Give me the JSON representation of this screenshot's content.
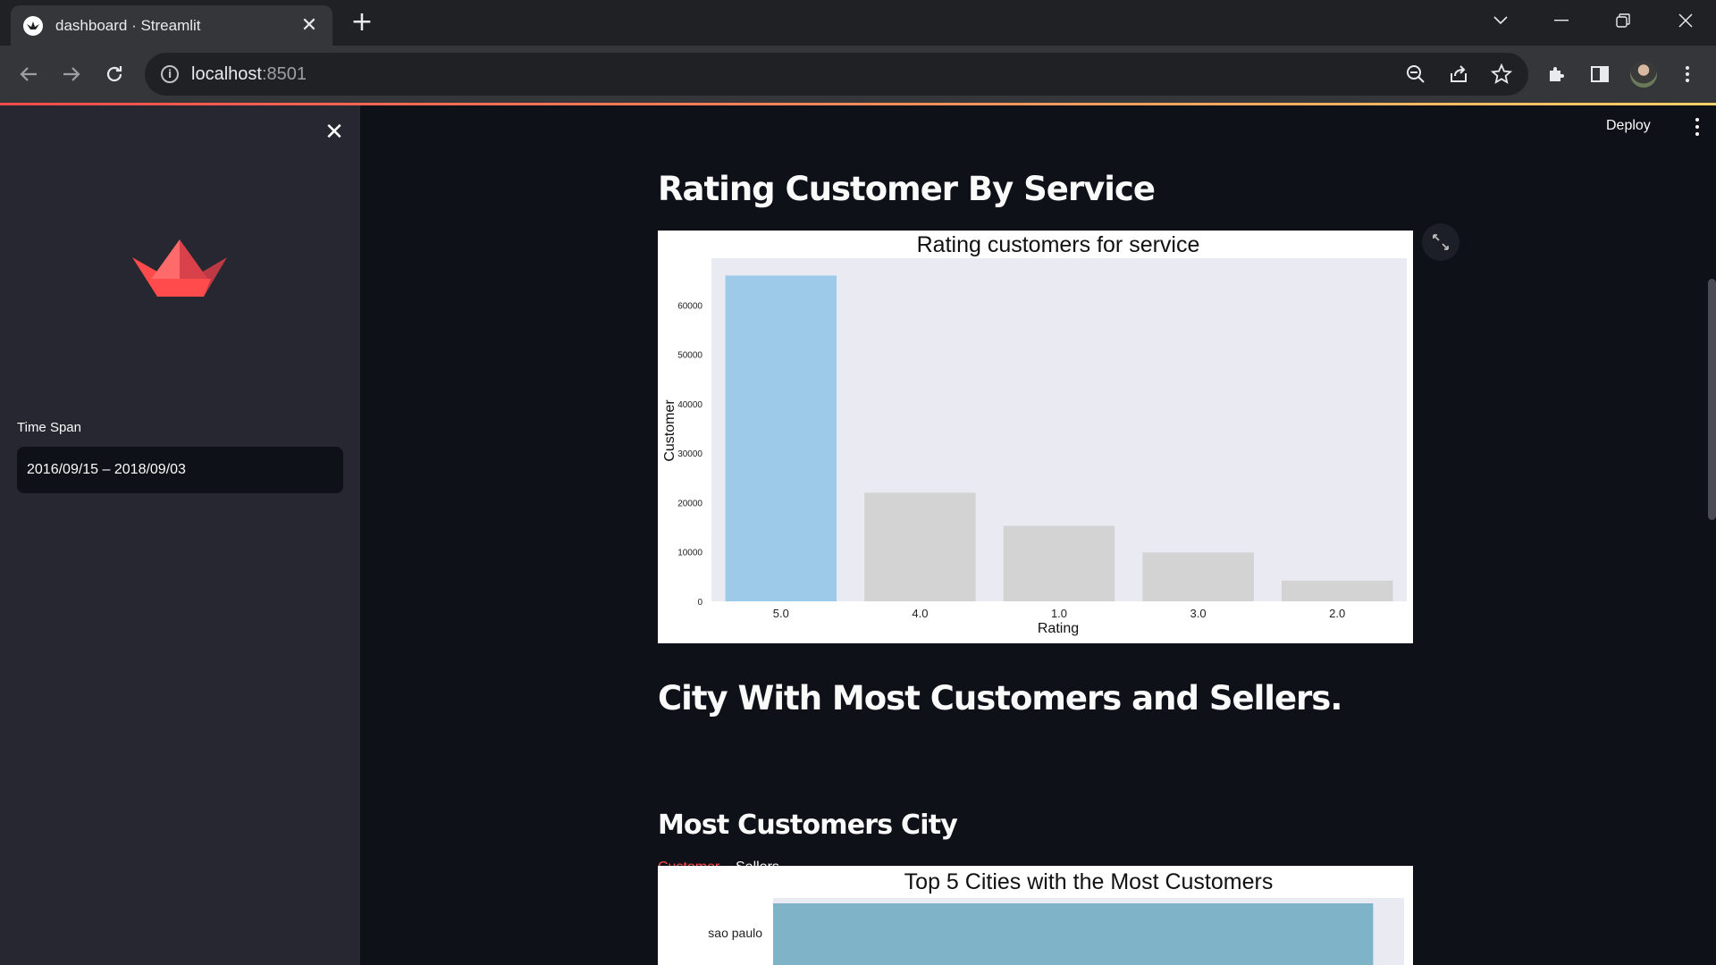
{
  "browser": {
    "tab_title": "dashboard · Streamlit",
    "url_host": "localhost",
    "url_port": ":8501"
  },
  "sidebar": {
    "time_span_label": "Time Span",
    "time_span_value": "2016/09/15 – 2018/09/03"
  },
  "header": {
    "deploy_label": "Deploy"
  },
  "main": {
    "rating_heading": "Rating Customer By Service",
    "city_heading": "City With Most Customers and Sellers.",
    "tabs": [
      {
        "label": "Customer",
        "active": true
      },
      {
        "label": "Sellers",
        "active": false
      }
    ],
    "most_customers_heading": "Most Customers City"
  },
  "colors": {
    "accent": "#ff4b4b",
    "highlight_bar": "#9ecae9",
    "muted_bar": "#d3d3d3",
    "city_bar": "#7fb3c8",
    "plot_bg": "#eaeaf2"
  },
  "chart_data": [
    {
      "type": "bar",
      "title": "Rating customers for service",
      "xlabel": "Rating",
      "ylabel": "Customer",
      "categories": [
        "5.0",
        "4.0",
        "1.0",
        "3.0",
        "2.0"
      ],
      "values": [
        66000,
        22000,
        15300,
        9900,
        4200
      ],
      "ylim": [
        0,
        69500
      ],
      "yticks": [
        0,
        10000,
        20000,
        30000,
        40000,
        50000,
        60000
      ],
      "grid": false,
      "highlight_index": 0
    },
    {
      "type": "bar",
      "orientation": "horizontal",
      "title": "Top 5 Cities with the Most Customers",
      "categories": [
        "sao paulo"
      ],
      "values": [
        15500
      ],
      "xlim": [
        0,
        16300
      ]
    }
  ]
}
